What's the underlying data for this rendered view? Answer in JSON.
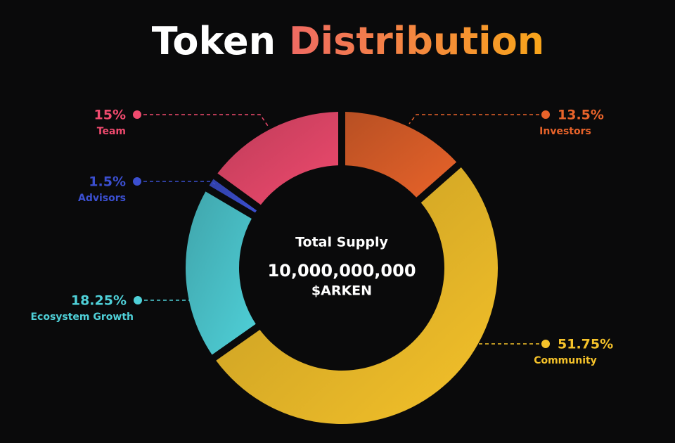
{
  "chart_data": {
    "type": "pie",
    "donut": true,
    "title": [
      "Token",
      "Distribution"
    ],
    "center_title": "Total Supply",
    "total_supply": {
      "value": 10000000000,
      "label": "10,000,000,000"
    },
    "unit": "$ARKEN",
    "categories": [
      "Investors",
      "Community",
      "Ecosystem Growth",
      "Advisors",
      "Team"
    ],
    "values": [
      13.5,
      51.75,
      18.25,
      1.5,
      15
    ],
    "value_labels": [
      "13.5%",
      "51.75%",
      "18.25%",
      "1.5%",
      "15%"
    ],
    "colors": [
      "#e8632a",
      "#f5c22a",
      "#4fd0d8",
      "#3b4fd0",
      "#ef4a6e"
    ]
  }
}
